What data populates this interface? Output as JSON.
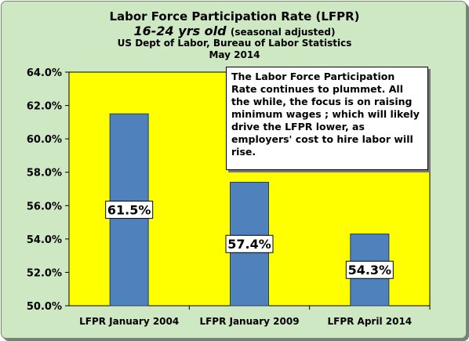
{
  "title": "Labor Force Participation Rate (LFPR)",
  "subtitle_main": "16-24 yrs old",
  "subtitle_note": "(seasonal adjusted)",
  "source": "US Dept of Labor, Bureau of Labor Statistics",
  "date": "May 2014",
  "annotation": "The Labor Force Participation Rate continues to plummet. All the while, the focus is on raising minimum wages ; which will likely drive the LFPR lower, as employers' cost to hire labor will rise.",
  "colors": {
    "frame": "#cfe8c4",
    "plot_area": "#ffff00",
    "bar": "#4f81bd"
  },
  "chart_data": {
    "type": "bar",
    "categories": [
      "LFPR January 2004",
      "LFPR January 2009",
      "LFPR April 2014"
    ],
    "values": [
      61.5,
      57.4,
      54.3
    ],
    "data_labels": [
      "61.5%",
      "57.4%",
      "54.3%"
    ],
    "ylim": [
      50,
      64
    ],
    "yticks": [
      "50.0%",
      "52.0%",
      "54.0%",
      "56.0%",
      "58.0%",
      "60.0%",
      "62.0%",
      "64.0%"
    ],
    "title": "Labor Force Participation Rate (LFPR)",
    "xlabel": "",
    "ylabel": "",
    "grid": false,
    "legend": "none"
  }
}
